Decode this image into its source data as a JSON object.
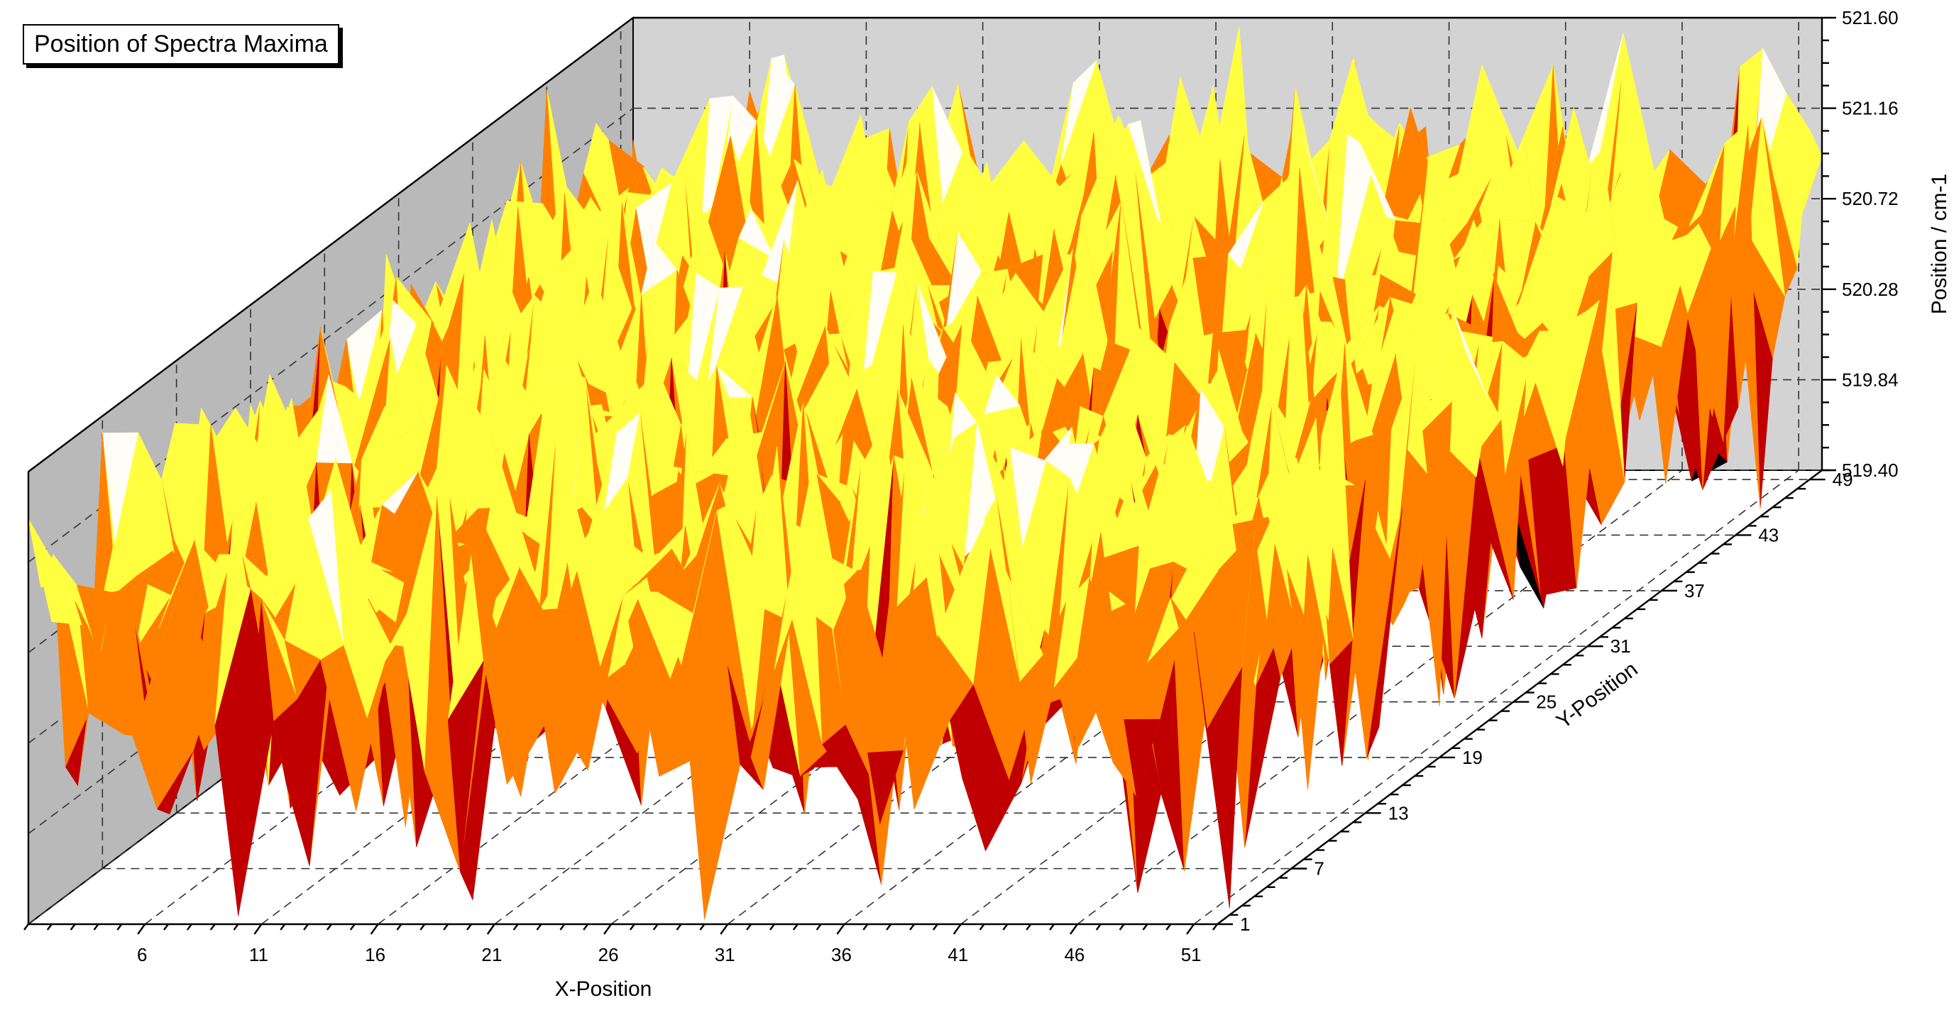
{
  "chart_data": {
    "type": "surface3d",
    "title": "Position of Spectra Maxima",
    "xlabel": "X-Position",
    "ylabel": "Y-Position",
    "zlabel": "Position / cm-1",
    "x_ticks": [
      "6",
      "11",
      "16",
      "21",
      "26",
      "31",
      "36",
      "41",
      "46",
      "51"
    ],
    "y_ticks": [
      "1",
      "7",
      "13",
      "19",
      "25",
      "31",
      "37",
      "43",
      "49"
    ],
    "z_ticks": [
      "519.40",
      "519.84",
      "520.28",
      "520.72",
      "521.16",
      "521.60"
    ],
    "xlim": [
      1,
      52
    ],
    "ylim": [
      1,
      50
    ],
    "zlim": [
      519.4,
      521.6
    ],
    "grid": true,
    "colormap_bands": [
      {
        "from": 519.4,
        "to": 519.84,
        "color": "#000000"
      },
      {
        "from": 519.84,
        "to": 520.28,
        "color": "#c00000"
      },
      {
        "from": 520.28,
        "to": 520.72,
        "color": "#ff8000"
      },
      {
        "from": 520.72,
        "to": 521.16,
        "color": "#ffff40"
      },
      {
        "from": 521.16,
        "to": 521.6,
        "color": "#fffdf5"
      }
    ],
    "grid_shape": {
      "nx": 52,
      "ny": 50
    },
    "value_range_note": "",
    "colors": {
      "back_wall": "#d3d3d3",
      "side_wall": "#b9b9b9",
      "surface_outline": "none"
    }
  }
}
